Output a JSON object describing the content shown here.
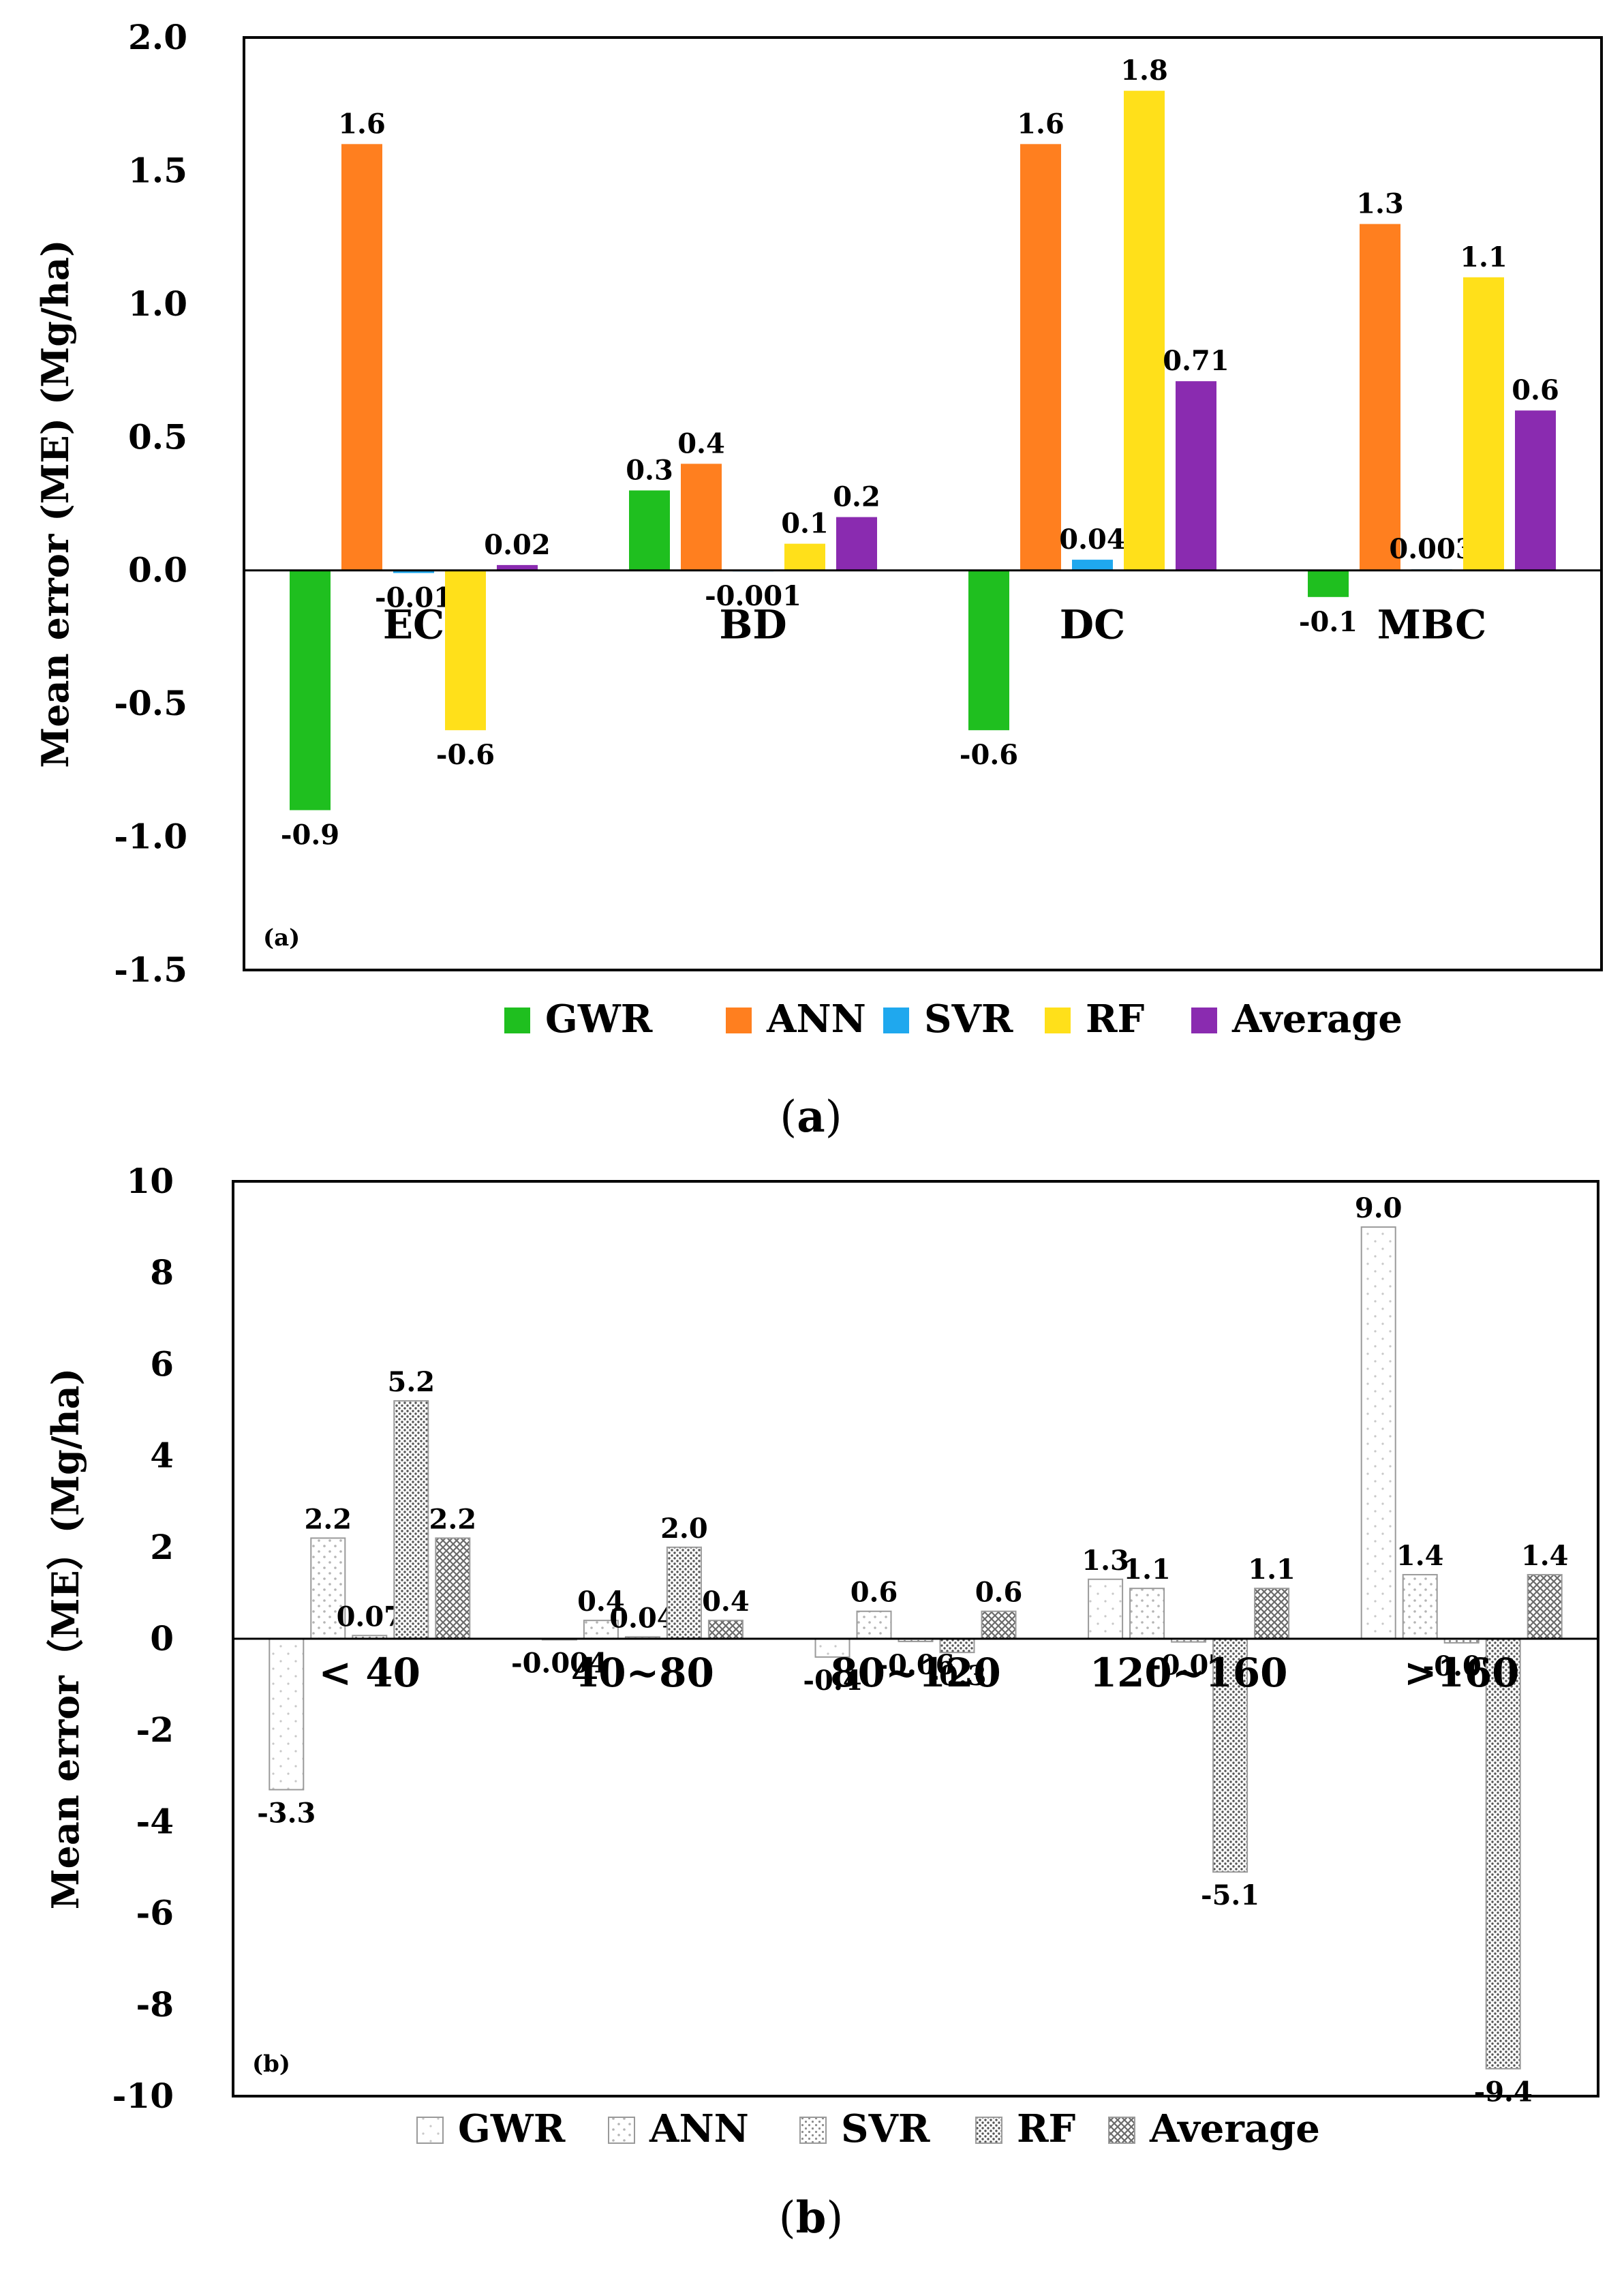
{
  "chart_data": [
    {
      "type": "bar",
      "panel_tag": "(a)",
      "caption_letter": "a",
      "ylabel": "Mean error (ME) (Mg/ha)",
      "ylim": [
        -1.5,
        2.0
      ],
      "yticks": [
        "2.0",
        "1.5",
        "1.0",
        "0.5",
        "0.0",
        "-0.5",
        "-1.0",
        "-1.5"
      ],
      "ytick_values": [
        2.0,
        1.5,
        1.0,
        0.5,
        0.0,
        -0.5,
        -1.0,
        -1.5
      ],
      "categories": [
        "EC",
        "BD",
        "DC",
        "MBC"
      ],
      "legend_position": "bottom",
      "series": [
        {
          "name": "GWR",
          "color": "#1fbf1f",
          "values": [
            -0.9,
            0.3,
            -0.6,
            -0.1
          ],
          "labels": [
            "-0.9",
            "0.3",
            "-0.6",
            "-0.1"
          ]
        },
        {
          "name": "ANN",
          "color": "#ff7f1f",
          "values": [
            1.6,
            0.4,
            1.6,
            1.3
          ],
          "labels": [
            "1.6",
            "0.4",
            "1.6",
            "1.3"
          ]
        },
        {
          "name": "SVR",
          "color": "#1fa8ee",
          "values": [
            -0.01,
            -0.001,
            0.04,
            0.003
          ],
          "labels": [
            "-0.01",
            "-0.001",
            "0.04",
            "0.003"
          ]
        },
        {
          "name": "RF",
          "color": "#ffe01a",
          "values": [
            -0.6,
            0.1,
            1.8,
            1.1
          ],
          "labels": [
            "-0.6",
            "0.1",
            "1.8",
            "1.1"
          ]
        },
        {
          "name": "Average",
          "color": "#8a2bb0",
          "values": [
            0.02,
            0.2,
            0.71,
            0.6
          ],
          "labels": [
            "0.02",
            "0.2",
            "0.71",
            "0.6"
          ]
        }
      ]
    },
    {
      "type": "bar",
      "panel_tag": "(b)",
      "caption_letter": "b",
      "ylabel": "Mean error（ME）(Mg/ha)",
      "ylim": [
        -10,
        10
      ],
      "yticks": [
        "10",
        "8",
        "6",
        "4",
        "2",
        "0",
        "-2",
        "-4",
        "-6",
        "-8",
        "-10"
      ],
      "ytick_values": [
        10,
        8,
        6,
        4,
        2,
        0,
        -2,
        -4,
        -6,
        -8,
        -10
      ],
      "categories": [
        "< 40",
        "40~80",
        "80~120",
        "120~160",
        ">160"
      ],
      "legend_position": "bottom",
      "series": [
        {
          "name": "GWR",
          "pattern": "gwr",
          "values": [
            -3.3,
            -0.004,
            -0.4,
            1.3,
            9.0
          ],
          "labels": [
            "-3.3",
            "-0.004",
            "-0.4",
            "1.3",
            "9.0"
          ]
        },
        {
          "name": "ANN",
          "pattern": "ann",
          "values": [
            2.2,
            0.4,
            0.6,
            1.1,
            1.4
          ],
          "labels": [
            "2.2",
            "0.4",
            "0.6",
            "1.1",
            "1.4"
          ]
        },
        {
          "name": "SVR",
          "pattern": "svr",
          "values": [
            0.07,
            0.04,
            -0.06,
            -0.07,
            -0.09
          ],
          "labels": [
            "0.07",
            "0.04",
            "-0.06",
            "-0.07",
            "-0.09"
          ]
        },
        {
          "name": "RF",
          "pattern": "rf",
          "values": [
            5.2,
            2.0,
            -0.3,
            -5.1,
            -9.4
          ],
          "labels": [
            "5.2",
            "2.0",
            "-0.3",
            "-5.1",
            "-9.4"
          ]
        },
        {
          "name": "Average",
          "pattern": "avg",
          "values": [
            2.2,
            0.4,
            0.6,
            1.1,
            1.4
          ],
          "labels": [
            "2.2",
            "0.4",
            "0.6",
            "1.1",
            "1.4"
          ]
        }
      ]
    }
  ]
}
